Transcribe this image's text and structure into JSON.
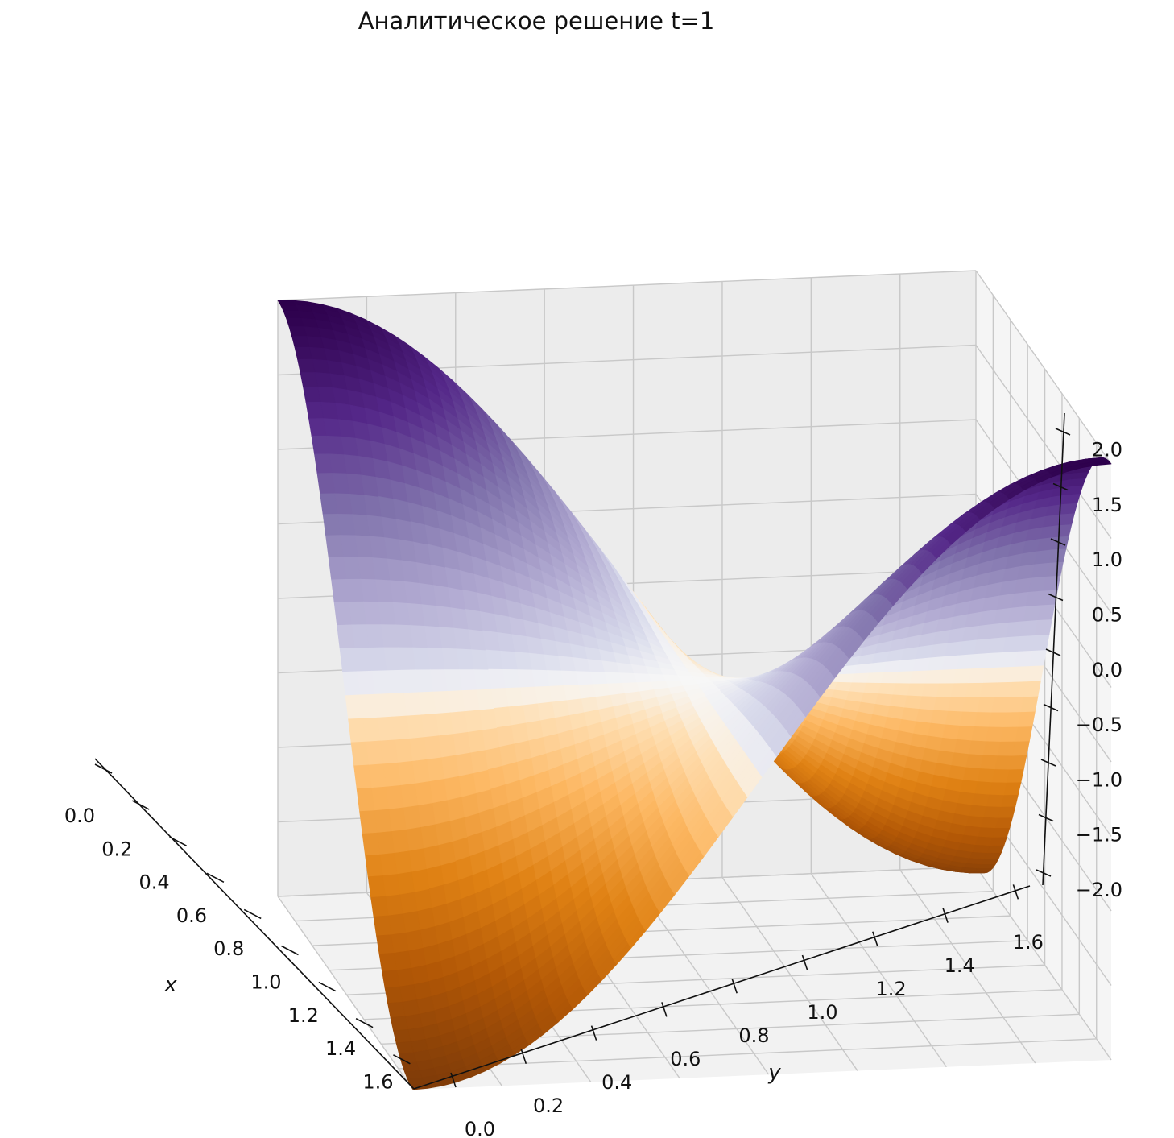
{
  "chart_data": {
    "type": "surface",
    "title": "Аналитическое решение t=1",
    "xlabel": "x",
    "ylabel": "y",
    "zlabel": "",
    "function_form": "z = 2·cos(2x)·cos(2y)",
    "x_range": [
      0,
      1.5708
    ],
    "y_range": [
      0,
      1.5708
    ],
    "zlim": [
      -2.0,
      2.0
    ],
    "x_ticks": [
      "0.0",
      "0.2",
      "0.4",
      "0.6",
      "0.8",
      "1.0",
      "1.2",
      "1.4",
      "1.6"
    ],
    "y_ticks": [
      "0.0",
      "0.2",
      "0.4",
      "0.6",
      "0.8",
      "1.0",
      "1.2",
      "1.4",
      "1.6"
    ],
    "z_ticks": [
      "−2.0",
      "−1.5",
      "−1.0",
      "−0.5",
      "0.0",
      "0.5",
      "1.0",
      "1.5",
      "2.0"
    ],
    "corner_values": [
      {
        "x": 0,
        "y": 0,
        "z": 2.0
      },
      {
        "x": 1.5708,
        "y": 0,
        "z": -2.0
      },
      {
        "x": 0,
        "y": 1.5708,
        "z": -2.0
      },
      {
        "x": 1.5708,
        "y": 1.5708,
        "z": 2.0
      }
    ],
    "colormap": "PuOr",
    "colors": {
      "high": "#2d004b",
      "mid": "#f7f7f7",
      "low": "#7f3b08"
    },
    "grid": true
  }
}
